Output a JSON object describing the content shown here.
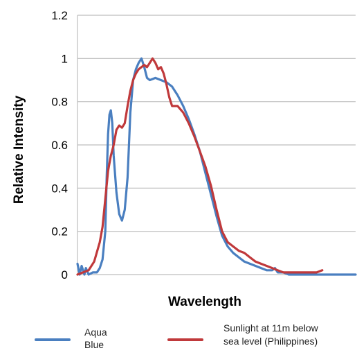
{
  "chart_data": {
    "type": "line",
    "xlabel": "Wavelength",
    "ylabel": "Relative Intensity",
    "ylim": [
      0,
      1.2
    ],
    "yticks": [
      "0",
      "0.2",
      "0.4",
      "0.6",
      "0.8",
      "1",
      "1.2"
    ],
    "x_tick_labels_shown": false,
    "xlim": [
      0,
      100
    ],
    "grid": "horizontal",
    "legend_position": "bottom",
    "series": [
      {
        "name_lines": [
          "Aqua",
          "Blue"
        ],
        "color": "#4a7fc0",
        "points": [
          [
            0,
            0.05
          ],
          [
            0.8,
            0.0
          ],
          [
            1.5,
            0.04
          ],
          [
            2.5,
            0.0
          ],
          [
            3,
            0.03
          ],
          [
            4,
            0.0
          ],
          [
            5.5,
            0.01
          ],
          [
            7,
            0.01
          ],
          [
            8,
            0.03
          ],
          [
            9,
            0.07
          ],
          [
            10,
            0.2
          ],
          [
            10.5,
            0.45
          ],
          [
            11,
            0.65
          ],
          [
            11.5,
            0.74
          ],
          [
            12,
            0.76
          ],
          [
            12.5,
            0.7
          ],
          [
            13,
            0.55
          ],
          [
            14,
            0.38
          ],
          [
            15,
            0.28
          ],
          [
            16,
            0.25
          ],
          [
            17,
            0.3
          ],
          [
            18,
            0.45
          ],
          [
            19,
            0.75
          ],
          [
            20,
            0.9
          ],
          [
            21,
            0.95
          ],
          [
            22,
            0.98
          ],
          [
            23,
            1.0
          ],
          [
            24,
            0.96
          ],
          [
            25,
            0.91
          ],
          [
            26,
            0.9
          ],
          [
            28,
            0.91
          ],
          [
            30,
            0.9
          ],
          [
            32,
            0.89
          ],
          [
            34,
            0.87
          ],
          [
            36,
            0.83
          ],
          [
            38,
            0.78
          ],
          [
            40,
            0.72
          ],
          [
            42,
            0.65
          ],
          [
            44,
            0.57
          ],
          [
            46,
            0.47
          ],
          [
            48,
            0.37
          ],
          [
            50,
            0.27
          ],
          [
            52,
            0.18
          ],
          [
            54,
            0.13
          ],
          [
            56,
            0.1
          ],
          [
            58,
            0.08
          ],
          [
            60,
            0.06
          ],
          [
            62,
            0.05
          ],
          [
            64,
            0.04
          ],
          [
            66,
            0.03
          ],
          [
            68,
            0.02
          ],
          [
            70,
            0.02
          ],
          [
            71,
            0.03
          ],
          [
            72,
            0.01
          ],
          [
            74,
            0.01
          ],
          [
            76,
            0.0
          ],
          [
            80,
            0.0
          ],
          [
            85,
            0.0
          ],
          [
            90,
            0.0
          ],
          [
            94,
            0.0
          ],
          [
            100,
            0.0
          ]
        ]
      },
      {
        "name_lines": [
          "Sunlight at 11m below",
          "sea level  (Philippines)"
        ],
        "color": "#c0393b",
        "points": [
          [
            0,
            0.0
          ],
          [
            2,
            0.01
          ],
          [
            4,
            0.02
          ],
          [
            6,
            0.06
          ],
          [
            8,
            0.15
          ],
          [
            9,
            0.22
          ],
          [
            10,
            0.35
          ],
          [
            11,
            0.48
          ],
          [
            12,
            0.55
          ],
          [
            13,
            0.6
          ],
          [
            14,
            0.67
          ],
          [
            15,
            0.69
          ],
          [
            16,
            0.68
          ],
          [
            17,
            0.7
          ],
          [
            18,
            0.78
          ],
          [
            19,
            0.85
          ],
          [
            20,
            0.9
          ],
          [
            21,
            0.93
          ],
          [
            22,
            0.95
          ],
          [
            24,
            0.97
          ],
          [
            25,
            0.96
          ],
          [
            26,
            0.98
          ],
          [
            27,
            1.0
          ],
          [
            28,
            0.98
          ],
          [
            29,
            0.95
          ],
          [
            30,
            0.96
          ],
          [
            31,
            0.93
          ],
          [
            32,
            0.88
          ],
          [
            33,
            0.82
          ],
          [
            34,
            0.78
          ],
          [
            36,
            0.78
          ],
          [
            38,
            0.75
          ],
          [
            40,
            0.7
          ],
          [
            42,
            0.64
          ],
          [
            44,
            0.57
          ],
          [
            46,
            0.5
          ],
          [
            48,
            0.41
          ],
          [
            50,
            0.3
          ],
          [
            52,
            0.2
          ],
          [
            54,
            0.15
          ],
          [
            56,
            0.13
          ],
          [
            58,
            0.11
          ],
          [
            60,
            0.1
          ],
          [
            62,
            0.08
          ],
          [
            64,
            0.06
          ],
          [
            66,
            0.05
          ],
          [
            68,
            0.04
          ],
          [
            70,
            0.03
          ],
          [
            72,
            0.02
          ],
          [
            74,
            0.01
          ],
          [
            76,
            0.01
          ],
          [
            78,
            0.01
          ],
          [
            80,
            0.01
          ],
          [
            82,
            0.01
          ],
          [
            84,
            0.01
          ],
          [
            86,
            0.01
          ],
          [
            88,
            0.02
          ]
        ]
      }
    ]
  }
}
